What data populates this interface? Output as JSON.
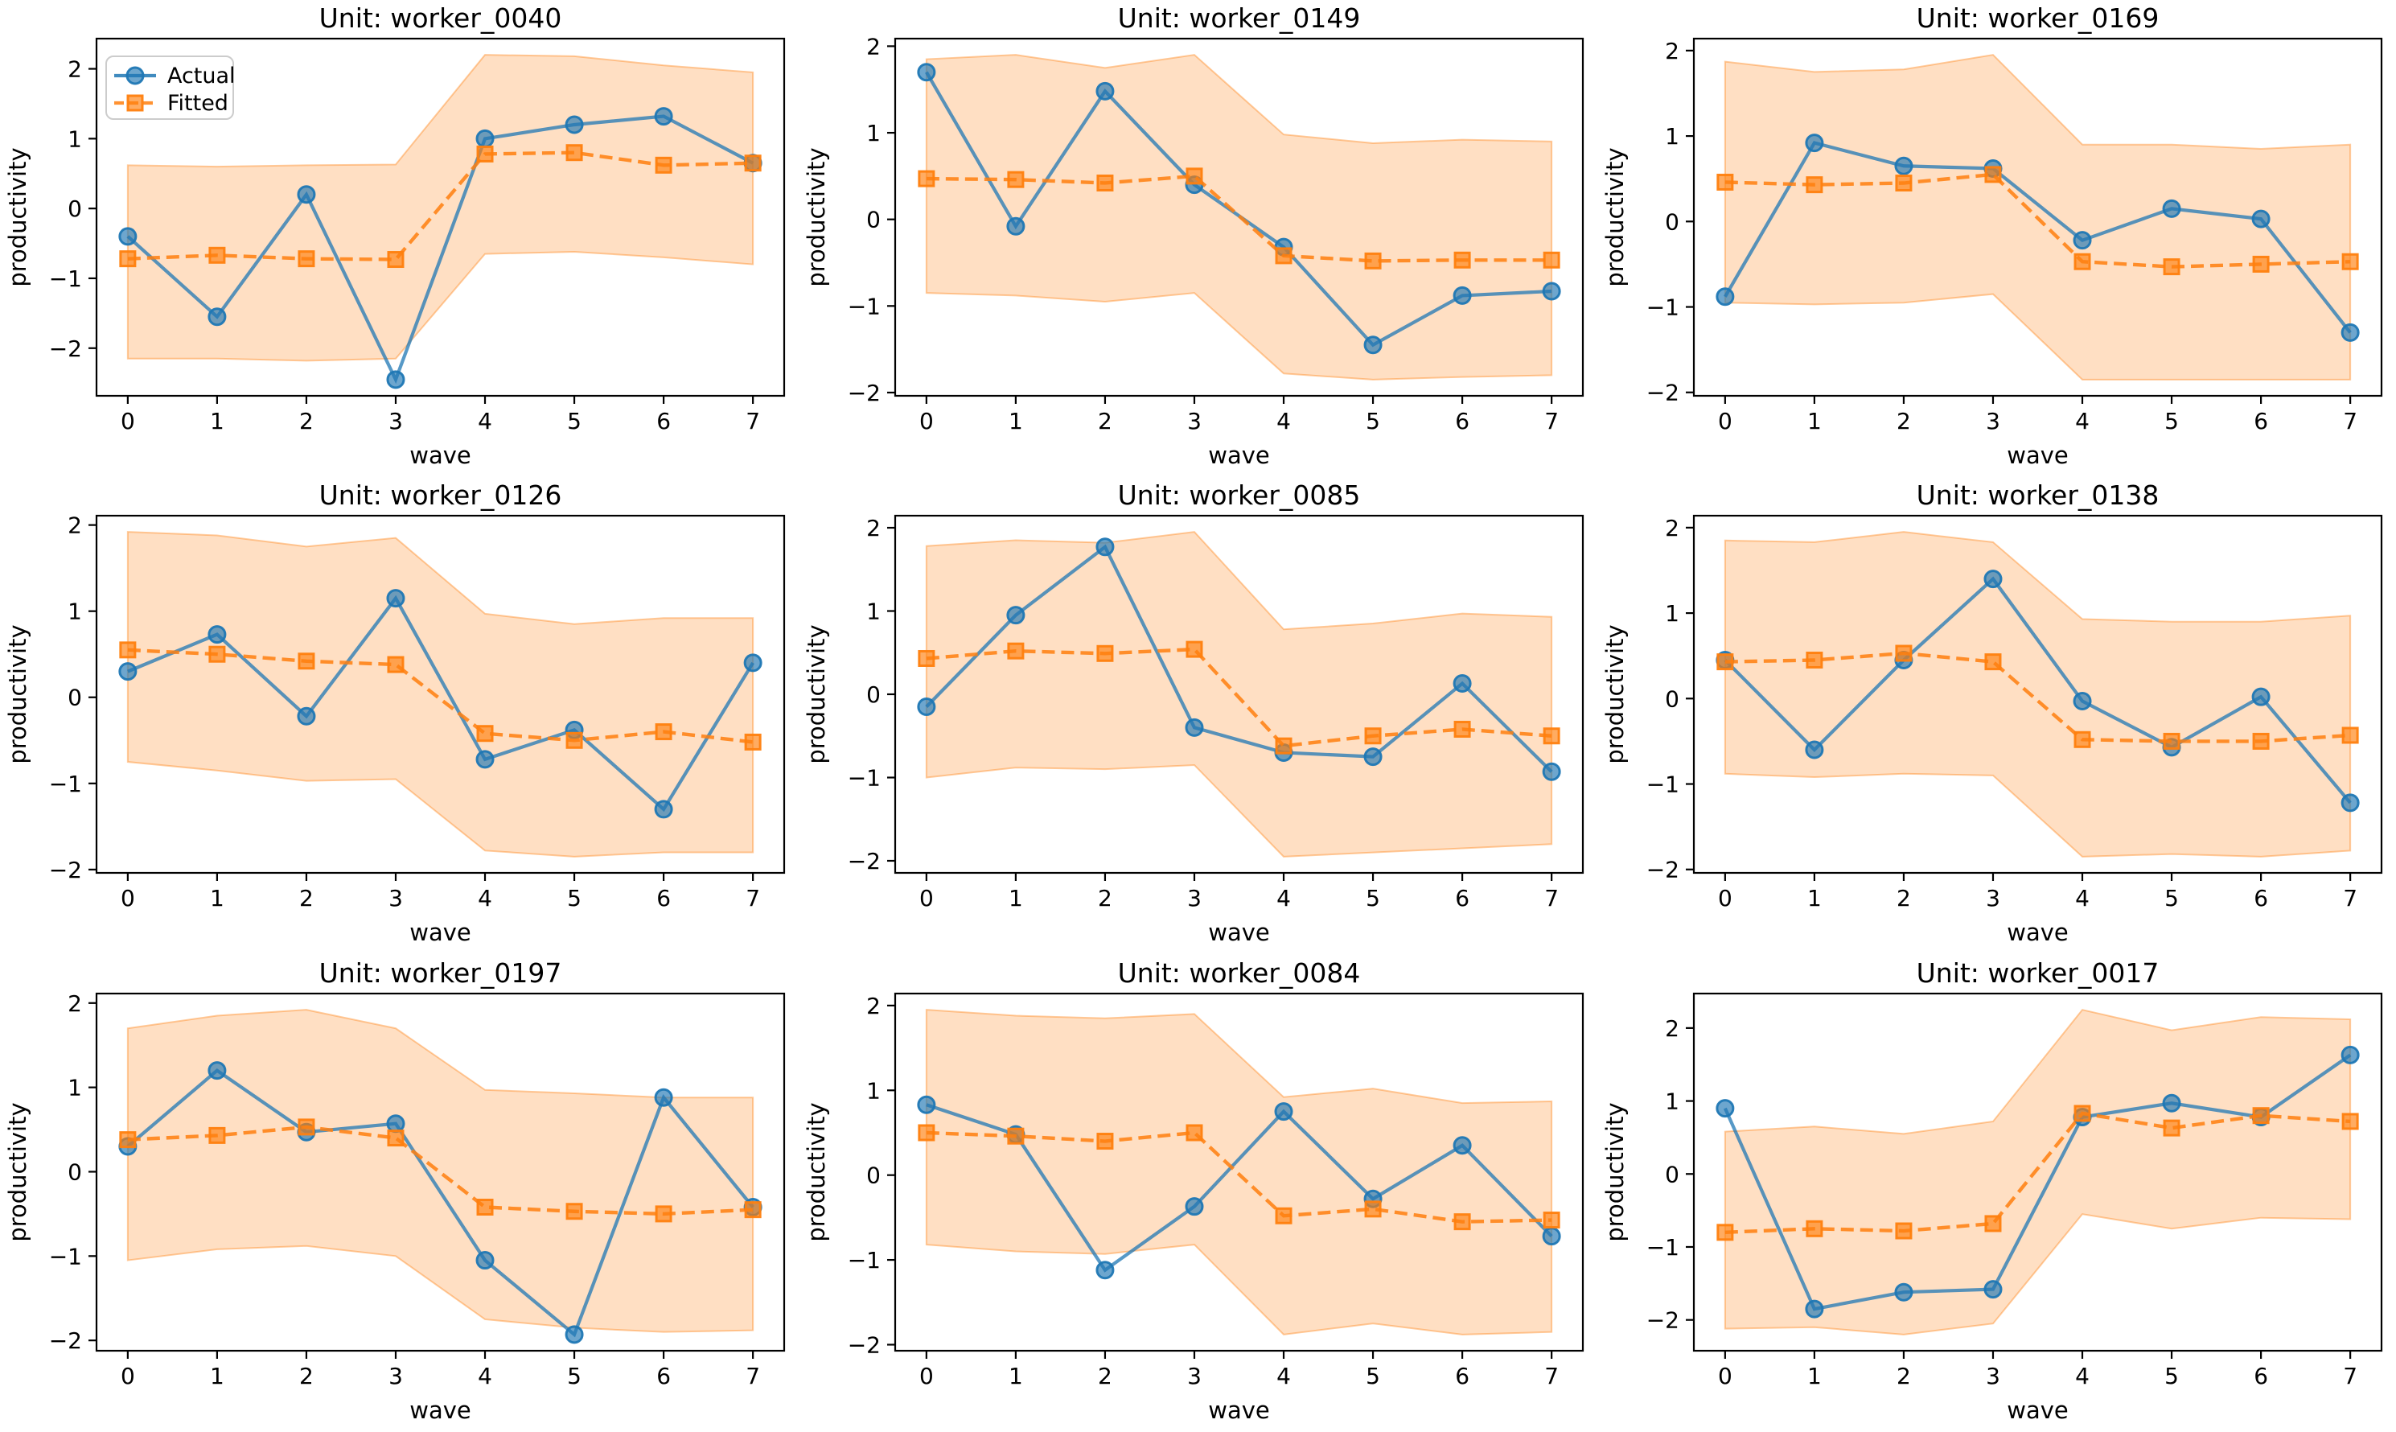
{
  "figure": {
    "rows": 3,
    "cols": 3,
    "xlabel": "wave",
    "ylabel": "productivity",
    "legend_entries": [
      "Actual",
      "Fitted"
    ]
  },
  "style": {
    "actual_color": "#1f77b4",
    "fitted_color": "#ff7f0e",
    "band_fill_color": "#fbdcc2",
    "band_fill_rgba": "rgba(255,127,14,0.25)",
    "band_edge_rgba": "rgba(255,127,14,0.4)",
    "spine_color": "#000000",
    "legend_border_color": "#cccccc"
  },
  "chart_data": [
    {
      "type": "line",
      "title": "Unit: worker_0040",
      "xlabel": "wave",
      "ylabel": "productivity",
      "x": [
        0,
        1,
        2,
        3,
        4,
        5,
        6,
        7
      ],
      "xticks": [
        0,
        1,
        2,
        3,
        4,
        5,
        6,
        7
      ],
      "yticks": [
        -2,
        -1,
        0,
        1,
        2
      ],
      "legend": {
        "show": true,
        "position": "upper left"
      },
      "series": [
        {
          "name": "Actual",
          "marker": "circle",
          "line": "solid",
          "values": [
            -0.4,
            -1.55,
            0.2,
            -2.45,
            1.0,
            1.2,
            1.32,
            0.65
          ]
        },
        {
          "name": "Fitted",
          "marker": "square",
          "line": "dashed",
          "values": [
            -0.72,
            -0.67,
            -0.72,
            -0.73,
            0.78,
            0.8,
            0.62,
            0.65
          ]
        }
      ],
      "band": {
        "lower": [
          -2.15,
          -2.15,
          -2.18,
          -2.15,
          -0.65,
          -0.62,
          -0.7,
          -0.8
        ],
        "upper": [
          0.62,
          0.6,
          0.62,
          0.63,
          2.2,
          2.18,
          2.05,
          1.95
        ]
      }
    },
    {
      "type": "line",
      "title": "Unit: worker_0149",
      "xlabel": "wave",
      "ylabel": "productivity",
      "x": [
        0,
        1,
        2,
        3,
        4,
        5,
        6,
        7
      ],
      "xticks": [
        0,
        1,
        2,
        3,
        4,
        5,
        6,
        7
      ],
      "yticks": [
        -2,
        -1,
        0,
        1,
        2
      ],
      "legend": {
        "show": false
      },
      "series": [
        {
          "name": "Actual",
          "marker": "circle",
          "line": "solid",
          "values": [
            1.7,
            -0.08,
            1.48,
            0.4,
            -0.32,
            -1.45,
            -0.88,
            -0.83
          ]
        },
        {
          "name": "Fitted",
          "marker": "square",
          "line": "dashed",
          "values": [
            0.47,
            0.46,
            0.42,
            0.5,
            -0.42,
            -0.48,
            -0.47,
            -0.47
          ]
        }
      ],
      "band": {
        "lower": [
          -0.85,
          -0.88,
          -0.95,
          -0.85,
          -1.78,
          -1.85,
          -1.82,
          -1.8
        ],
        "upper": [
          1.85,
          1.9,
          1.75,
          1.9,
          0.98,
          0.88,
          0.92,
          0.9
        ]
      }
    },
    {
      "type": "line",
      "title": "Unit: worker_0169",
      "xlabel": "wave",
      "ylabel": "productivity",
      "x": [
        0,
        1,
        2,
        3,
        4,
        5,
        6,
        7
      ],
      "xticks": [
        0,
        1,
        2,
        3,
        4,
        5,
        6,
        7
      ],
      "yticks": [
        -2,
        -1,
        0,
        1,
        2
      ],
      "legend": {
        "show": false
      },
      "series": [
        {
          "name": "Actual",
          "marker": "circle",
          "line": "solid",
          "values": [
            -0.88,
            0.92,
            0.65,
            0.62,
            -0.22,
            0.15,
            0.03,
            -1.3
          ]
        },
        {
          "name": "Fitted",
          "marker": "square",
          "line": "dashed",
          "values": [
            0.46,
            0.43,
            0.45,
            0.55,
            -0.47,
            -0.53,
            -0.5,
            -0.47
          ]
        }
      ],
      "band": {
        "lower": [
          -0.95,
          -0.97,
          -0.95,
          -0.85,
          -1.85,
          -1.85,
          -1.85,
          -1.85
        ],
        "upper": [
          1.87,
          1.75,
          1.78,
          1.95,
          0.9,
          0.9,
          0.85,
          0.9
        ]
      }
    },
    {
      "type": "line",
      "title": "Unit: worker_0126",
      "xlabel": "wave",
      "ylabel": "productivity",
      "x": [
        0,
        1,
        2,
        3,
        4,
        5,
        6,
        7
      ],
      "xticks": [
        0,
        1,
        2,
        3,
        4,
        5,
        6,
        7
      ],
      "yticks": [
        -2,
        -1,
        0,
        1,
        2
      ],
      "legend": {
        "show": false
      },
      "series": [
        {
          "name": "Actual",
          "marker": "circle",
          "line": "solid",
          "values": [
            0.3,
            0.73,
            -0.22,
            1.15,
            -0.72,
            -0.38,
            -1.3,
            0.4
          ]
        },
        {
          "name": "Fitted",
          "marker": "square",
          "line": "dashed",
          "values": [
            0.55,
            0.5,
            0.42,
            0.38,
            -0.42,
            -0.5,
            -0.4,
            -0.52
          ]
        }
      ],
      "band": {
        "lower": [
          -0.75,
          -0.85,
          -0.97,
          -0.95,
          -1.78,
          -1.85,
          -1.8,
          -1.8
        ],
        "upper": [
          1.92,
          1.88,
          1.75,
          1.85,
          0.97,
          0.85,
          0.92,
          0.92
        ]
      }
    },
    {
      "type": "line",
      "title": "Unit: worker_0085",
      "xlabel": "wave",
      "ylabel": "productivity",
      "x": [
        0,
        1,
        2,
        3,
        4,
        5,
        6,
        7
      ],
      "xticks": [
        0,
        1,
        2,
        3,
        4,
        5,
        6,
        7
      ],
      "yticks": [
        -2,
        -1,
        0,
        1,
        2
      ],
      "legend": {
        "show": false
      },
      "series": [
        {
          "name": "Actual",
          "marker": "circle",
          "line": "solid",
          "values": [
            -0.15,
            0.95,
            1.77,
            -0.4,
            -0.7,
            -0.75,
            0.13,
            -0.93
          ]
        },
        {
          "name": "Fitted",
          "marker": "square",
          "line": "dashed",
          "values": [
            0.43,
            0.52,
            0.49,
            0.54,
            -0.62,
            -0.5,
            -0.42,
            -0.5
          ]
        }
      ],
      "band": {
        "lower": [
          -1.0,
          -0.88,
          -0.9,
          -0.85,
          -1.95,
          -1.9,
          -1.85,
          -1.8
        ],
        "upper": [
          1.78,
          1.85,
          1.82,
          1.95,
          0.78,
          0.85,
          0.97,
          0.93
        ]
      }
    },
    {
      "type": "line",
      "title": "Unit: worker_0138",
      "xlabel": "wave",
      "ylabel": "productivity",
      "x": [
        0,
        1,
        2,
        3,
        4,
        5,
        6,
        7
      ],
      "xticks": [
        0,
        1,
        2,
        3,
        4,
        5,
        6,
        7
      ],
      "yticks": [
        -2,
        -1,
        0,
        1,
        2
      ],
      "legend": {
        "show": false
      },
      "series": [
        {
          "name": "Actual",
          "marker": "circle",
          "line": "solid",
          "values": [
            0.45,
            -0.6,
            0.45,
            1.4,
            -0.03,
            -0.57,
            0.02,
            -1.22
          ]
        },
        {
          "name": "Fitted",
          "marker": "square",
          "line": "dashed",
          "values": [
            0.43,
            0.45,
            0.53,
            0.43,
            -0.48,
            -0.5,
            -0.5,
            -0.43
          ]
        }
      ],
      "band": {
        "lower": [
          -0.88,
          -0.92,
          -0.88,
          -0.9,
          -1.85,
          -1.82,
          -1.85,
          -1.78
        ],
        "upper": [
          1.85,
          1.83,
          1.95,
          1.83,
          0.93,
          0.9,
          0.9,
          0.97
        ]
      }
    },
    {
      "type": "line",
      "title": "Unit: worker_0197",
      "xlabel": "wave",
      "ylabel": "productivity",
      "x": [
        0,
        1,
        2,
        3,
        4,
        5,
        6,
        7
      ],
      "xticks": [
        0,
        1,
        2,
        3,
        4,
        5,
        6,
        7
      ],
      "yticks": [
        -2,
        -1,
        0,
        1,
        2
      ],
      "legend": {
        "show": false
      },
      "series": [
        {
          "name": "Actual",
          "marker": "circle",
          "line": "solid",
          "values": [
            0.3,
            1.2,
            0.47,
            0.57,
            -1.05,
            -1.93,
            0.88,
            -0.42
          ]
        },
        {
          "name": "Fitted",
          "marker": "square",
          "line": "dashed",
          "values": [
            0.38,
            0.43,
            0.53,
            0.4,
            -0.42,
            -0.47,
            -0.5,
            -0.45
          ]
        }
      ],
      "band": {
        "lower": [
          -1.05,
          -0.92,
          -0.88,
          -1.0,
          -1.75,
          -1.85,
          -1.9,
          -1.88
        ],
        "upper": [
          1.7,
          1.85,
          1.92,
          1.7,
          0.97,
          0.93,
          0.88,
          0.88
        ]
      }
    },
    {
      "type": "line",
      "title": "Unit: worker_0084",
      "xlabel": "wave",
      "ylabel": "productivity",
      "x": [
        0,
        1,
        2,
        3,
        4,
        5,
        6,
        7
      ],
      "xticks": [
        0,
        1,
        2,
        3,
        4,
        5,
        6,
        7
      ],
      "yticks": [
        -2,
        -1,
        0,
        1,
        2
      ],
      "legend": {
        "show": false
      },
      "series": [
        {
          "name": "Actual",
          "marker": "circle",
          "line": "solid",
          "values": [
            0.83,
            0.48,
            -1.12,
            -0.37,
            0.75,
            -0.28,
            0.35,
            -0.72
          ]
        },
        {
          "name": "Fitted",
          "marker": "square",
          "line": "dashed",
          "values": [
            0.5,
            0.46,
            0.4,
            0.5,
            -0.48,
            -0.4,
            -0.55,
            -0.53
          ]
        }
      ],
      "band": {
        "lower": [
          -0.82,
          -0.9,
          -0.93,
          -0.82,
          -1.88,
          -1.75,
          -1.88,
          -1.85
        ],
        "upper": [
          1.95,
          1.88,
          1.85,
          1.9,
          0.92,
          1.02,
          0.85,
          0.87
        ]
      }
    },
    {
      "type": "line",
      "title": "Unit: worker_0017",
      "xlabel": "wave",
      "ylabel": "productivity",
      "x": [
        0,
        1,
        2,
        3,
        4,
        5,
        6,
        7
      ],
      "xticks": [
        0,
        1,
        2,
        3,
        4,
        5,
        6,
        7
      ],
      "yticks": [
        -2,
        -1,
        0,
        1,
        2
      ],
      "legend": {
        "show": false
      },
      "series": [
        {
          "name": "Actual",
          "marker": "circle",
          "line": "solid",
          "values": [
            0.9,
            -1.85,
            -1.62,
            -1.58,
            0.78,
            0.97,
            0.78,
            1.63
          ]
        },
        {
          "name": "Fitted",
          "marker": "square",
          "line": "dashed",
          "values": [
            -0.8,
            -0.75,
            -0.78,
            -0.68,
            0.83,
            0.63,
            0.8,
            0.72
          ]
        }
      ],
      "band": {
        "lower": [
          -2.12,
          -2.1,
          -2.2,
          -2.05,
          -0.55,
          -0.75,
          -0.6,
          -0.62
        ],
        "upper": [
          0.58,
          0.65,
          0.55,
          0.72,
          2.25,
          1.97,
          2.15,
          2.12
        ]
      }
    }
  ]
}
